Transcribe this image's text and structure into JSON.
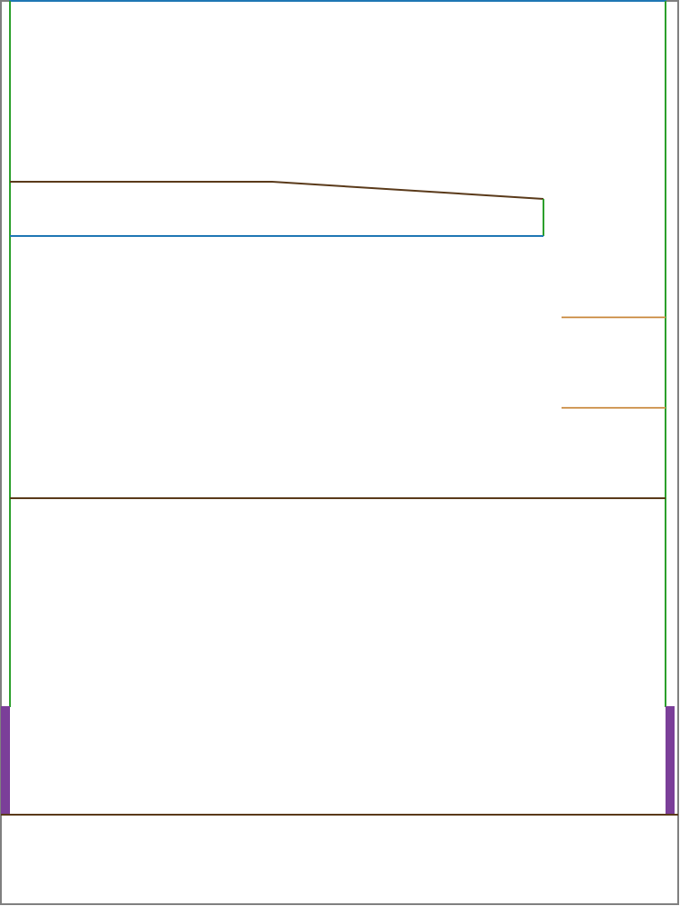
{
  "diagram": {
    "background_color": "#ffffff",
    "colors": {
      "outer_frame": "#808080",
      "blue": "#1f77b4",
      "green": "#2ca02c",
      "brown": "#5a3a1a",
      "orange": "#d19a5a",
      "purple": "#7b3f99"
    }
  }
}
